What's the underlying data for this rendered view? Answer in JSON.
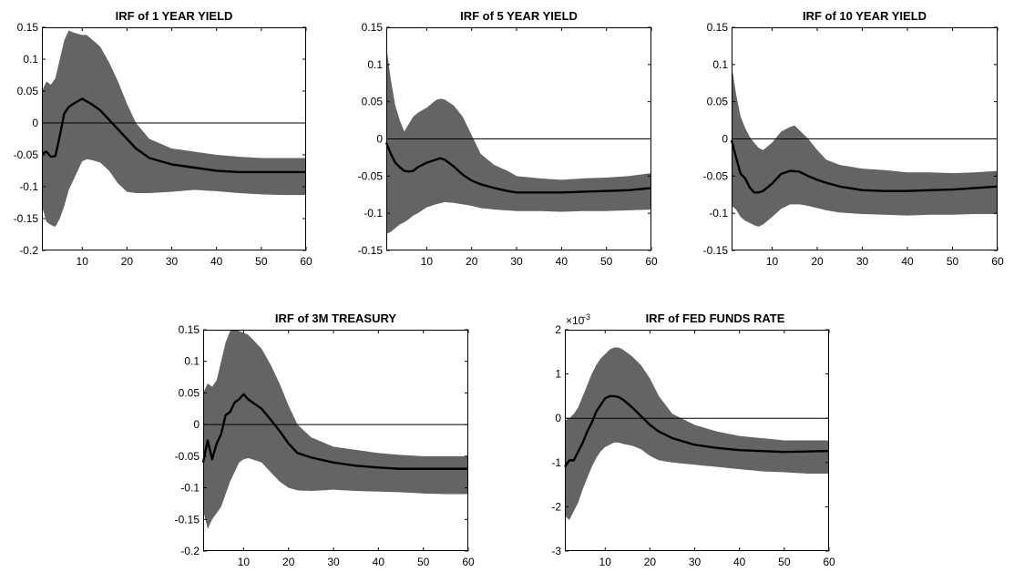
{
  "figure": {
    "background": "#ffffff"
  },
  "style": {
    "band_color": "#646464",
    "line_color": "#000000",
    "zero_line_color": "#000000"
  },
  "chart_data": [
    {
      "type": "area",
      "title": "IRF of 1 YEAR YIELD",
      "exponent_label": "",
      "xlim": [
        1,
        60
      ],
      "ylim": [
        -0.2,
        0.15
      ],
      "xticks": [
        10,
        20,
        30,
        40,
        50,
        60
      ],
      "xtick_labels": [
        "10",
        "20",
        "30",
        "40",
        "50",
        "60"
      ],
      "yticks": [
        -0.2,
        -0.15,
        -0.1,
        -0.05,
        0,
        0.05,
        0.1,
        0.15
      ],
      "ytick_labels": [
        "-0.2",
        "-0.15",
        "-0.1",
        "-0.05",
        "0",
        "0.05",
        "0.1",
        "0.15"
      ],
      "zero_line": 0,
      "series": [
        {
          "role": "irf",
          "x": [
            1,
            2,
            3,
            4,
            5,
            6,
            7,
            8,
            10,
            12,
            14,
            16,
            18,
            20,
            22,
            25,
            30,
            35,
            40,
            45,
            50,
            55,
            60
          ],
          "y": [
            -0.048,
            -0.045,
            -0.053,
            -0.052,
            -0.02,
            0.015,
            0.025,
            0.03,
            0.038,
            0.03,
            0.02,
            0.005,
            -0.01,
            -0.025,
            -0.04,
            -0.055,
            -0.065,
            -0.07,
            -0.075,
            -0.077,
            -0.077,
            -0.077,
            -0.077
          ]
        },
        {
          "role": "upper",
          "x": [
            1,
            2,
            3,
            4,
            5,
            6,
            7,
            8,
            9,
            10,
            11,
            12,
            14,
            16,
            18,
            20,
            22,
            25,
            30,
            35,
            40,
            45,
            50,
            55,
            60
          ],
          "y": [
            0.05,
            0.065,
            0.06,
            0.07,
            0.1,
            0.13,
            0.145,
            0.142,
            0.14,
            0.138,
            0.138,
            0.132,
            0.12,
            0.095,
            0.065,
            0.03,
            0.0,
            -0.025,
            -0.04,
            -0.045,
            -0.05,
            -0.053,
            -0.055,
            -0.055,
            -0.055
          ]
        },
        {
          "role": "lower",
          "x": [
            1,
            2,
            3,
            4,
            5,
            6,
            7,
            8,
            9,
            10,
            11,
            12,
            14,
            16,
            18,
            20,
            22,
            25,
            30,
            35,
            40,
            45,
            50,
            55,
            60
          ],
          "y": [
            -0.13,
            -0.155,
            -0.16,
            -0.163,
            -0.15,
            -0.13,
            -0.105,
            -0.09,
            -0.075,
            -0.06,
            -0.057,
            -0.058,
            -0.062,
            -0.075,
            -0.095,
            -0.108,
            -0.11,
            -0.11,
            -0.108,
            -0.105,
            -0.107,
            -0.11,
            -0.112,
            -0.113,
            -0.113
          ]
        }
      ]
    },
    {
      "type": "area",
      "title": "IRF of 5 YEAR YIELD",
      "exponent_label": "",
      "xlim": [
        1,
        60
      ],
      "ylim": [
        -0.15,
        0.15
      ],
      "xticks": [
        10,
        20,
        30,
        40,
        50,
        60
      ],
      "xtick_labels": [
        "10",
        "20",
        "30",
        "40",
        "50",
        "60"
      ],
      "yticks": [
        -0.15,
        -0.1,
        -0.05,
        0,
        0.05,
        0.1,
        0.15
      ],
      "ytick_labels": [
        "-0.15",
        "-0.1",
        "-0.05",
        "0",
        "0.05",
        "0.1",
        "0.15"
      ],
      "zero_line": 0,
      "series": [
        {
          "role": "irf",
          "x": [
            1,
            2,
            3,
            4,
            5,
            6,
            7,
            8,
            10,
            12,
            13,
            14,
            16,
            18,
            20,
            22,
            25,
            28,
            30,
            35,
            40,
            45,
            50,
            55,
            60
          ],
          "y": [
            -0.005,
            -0.02,
            -0.032,
            -0.038,
            -0.043,
            -0.044,
            -0.043,
            -0.038,
            -0.032,
            -0.028,
            -0.026,
            -0.028,
            -0.037,
            -0.048,
            -0.056,
            -0.061,
            -0.066,
            -0.07,
            -0.072,
            -0.072,
            -0.072,
            -0.071,
            -0.07,
            -0.069,
            -0.066
          ]
        },
        {
          "role": "upper",
          "x": [
            1,
            2,
            3,
            4,
            5,
            6,
            7,
            8,
            10,
            12,
            13,
            14,
            16,
            18,
            20,
            22,
            25,
            28,
            30,
            35,
            40,
            45,
            50,
            55,
            60
          ],
          "y": [
            0.125,
            0.08,
            0.045,
            0.025,
            0.01,
            0.02,
            0.03,
            0.035,
            0.042,
            0.052,
            0.054,
            0.053,
            0.045,
            0.03,
            0.005,
            -0.02,
            -0.035,
            -0.043,
            -0.05,
            -0.053,
            -0.055,
            -0.053,
            -0.052,
            -0.05,
            -0.046
          ]
        },
        {
          "role": "lower",
          "x": [
            1,
            2,
            3,
            4,
            5,
            6,
            7,
            8,
            10,
            12,
            14,
            16,
            18,
            20,
            22,
            25,
            30,
            35,
            40,
            45,
            50,
            55,
            60
          ],
          "y": [
            -0.128,
            -0.125,
            -0.12,
            -0.115,
            -0.112,
            -0.108,
            -0.103,
            -0.1,
            -0.092,
            -0.088,
            -0.085,
            -0.086,
            -0.088,
            -0.09,
            -0.093,
            -0.095,
            -0.097,
            -0.097,
            -0.098,
            -0.097,
            -0.097,
            -0.096,
            -0.095
          ]
        }
      ]
    },
    {
      "type": "area",
      "title": "IRF of 10 YEAR YIELD",
      "exponent_label": "",
      "xlim": [
        1,
        60
      ],
      "ylim": [
        -0.15,
        0.15
      ],
      "xticks": [
        10,
        20,
        30,
        40,
        50,
        60
      ],
      "xtick_labels": [
        "10",
        "20",
        "30",
        "40",
        "50",
        "60"
      ],
      "yticks": [
        -0.15,
        -0.1,
        -0.05,
        0,
        0.05,
        0.1,
        0.15
      ],
      "ytick_labels": [
        "-0.15",
        "-0.1",
        "-0.05",
        "0",
        "0.05",
        "0.1",
        "0.15"
      ],
      "zero_line": 0,
      "series": [
        {
          "role": "irf",
          "x": [
            1,
            2,
            3,
            4,
            5,
            6,
            7,
            8,
            10,
            12,
            14,
            16,
            18,
            20,
            22,
            25,
            30,
            35,
            40,
            45,
            50,
            55,
            60
          ],
          "y": [
            -0.002,
            -0.025,
            -0.047,
            -0.053,
            -0.065,
            -0.072,
            -0.072,
            -0.07,
            -0.06,
            -0.047,
            -0.043,
            -0.044,
            -0.05,
            -0.055,
            -0.059,
            -0.064,
            -0.069,
            -0.07,
            -0.07,
            -0.069,
            -0.068,
            -0.066,
            -0.064
          ]
        },
        {
          "role": "upper",
          "x": [
            1,
            2,
            3,
            4,
            5,
            6,
            7,
            8,
            10,
            12,
            14,
            15,
            16,
            18,
            20,
            22,
            25,
            30,
            35,
            40,
            45,
            50,
            55,
            60
          ],
          "y": [
            0.1,
            0.06,
            0.03,
            0.015,
            0.003,
            -0.005,
            -0.012,
            -0.015,
            -0.005,
            0.01,
            0.016,
            0.018,
            0.012,
            0.0,
            -0.015,
            -0.028,
            -0.035,
            -0.04,
            -0.042,
            -0.045,
            -0.045,
            -0.046,
            -0.045,
            -0.043
          ]
        },
        {
          "role": "lower",
          "x": [
            1,
            2,
            3,
            4,
            5,
            6,
            7,
            8,
            10,
            12,
            14,
            16,
            18,
            20,
            22,
            25,
            30,
            35,
            40,
            45,
            50,
            55,
            60
          ],
          "y": [
            -0.09,
            -0.095,
            -0.105,
            -0.11,
            -0.113,
            -0.116,
            -0.118,
            -0.115,
            -0.105,
            -0.094,
            -0.088,
            -0.088,
            -0.09,
            -0.093,
            -0.096,
            -0.099,
            -0.101,
            -0.102,
            -0.103,
            -0.102,
            -0.102,
            -0.101,
            -0.101
          ]
        }
      ]
    },
    {
      "type": "area",
      "title": "IRF of 3M TREASURY",
      "exponent_label": "",
      "xlim": [
        1,
        60
      ],
      "ylim": [
        -0.2,
        0.15
      ],
      "xticks": [
        10,
        20,
        30,
        40,
        50,
        60
      ],
      "xtick_labels": [
        "10",
        "20",
        "30",
        "40",
        "50",
        "60"
      ],
      "yticks": [
        -0.2,
        -0.15,
        -0.1,
        -0.05,
        0,
        0.05,
        0.1,
        0.15
      ],
      "ytick_labels": [
        "-0.2",
        "-0.15",
        "-0.1",
        "-0.05",
        "0",
        "0.05",
        "0.1",
        "0.15"
      ],
      "zero_line": 0,
      "series": [
        {
          "role": "irf",
          "x": [
            1,
            2,
            3,
            4,
            5,
            6,
            7,
            8,
            9,
            10,
            11,
            12,
            13,
            14,
            16,
            18,
            20,
            22,
            25,
            30,
            35,
            40,
            45,
            50,
            55,
            60
          ],
          "y": [
            -0.06,
            -0.025,
            -0.055,
            -0.03,
            -0.015,
            0.015,
            0.02,
            0.035,
            0.04,
            0.048,
            0.04,
            0.035,
            0.03,
            0.025,
            0.008,
            -0.01,
            -0.03,
            -0.045,
            -0.052,
            -0.06,
            -0.065,
            -0.068,
            -0.07,
            -0.07,
            -0.07,
            -0.07
          ]
        },
        {
          "role": "upper",
          "x": [
            1,
            2,
            3,
            4,
            5,
            6,
            7,
            8,
            9,
            10,
            11,
            12,
            14,
            16,
            18,
            20,
            22,
            25,
            30,
            35,
            40,
            45,
            50,
            55,
            60
          ],
          "y": [
            0.05,
            0.065,
            0.06,
            0.07,
            0.1,
            0.13,
            0.148,
            0.15,
            0.148,
            0.145,
            0.142,
            0.135,
            0.12,
            0.095,
            0.065,
            0.03,
            0.0,
            -0.02,
            -0.035,
            -0.04,
            -0.045,
            -0.048,
            -0.05,
            -0.05,
            -0.05
          ]
        },
        {
          "role": "lower",
          "x": [
            1,
            2,
            3,
            4,
            5,
            6,
            7,
            8,
            9,
            10,
            11,
            12,
            14,
            16,
            18,
            20,
            22,
            25,
            30,
            35,
            40,
            45,
            50,
            55,
            60
          ],
          "y": [
            -0.135,
            -0.165,
            -0.15,
            -0.14,
            -0.13,
            -0.11,
            -0.09,
            -0.075,
            -0.06,
            -0.055,
            -0.053,
            -0.055,
            -0.06,
            -0.075,
            -0.09,
            -0.1,
            -0.104,
            -0.105,
            -0.103,
            -0.105,
            -0.106,
            -0.107,
            -0.109,
            -0.11,
            -0.11
          ]
        }
      ]
    },
    {
      "type": "area",
      "title": "IRF of FED FUNDS RATE",
      "exponent_label": "×10",
      "exponent_power": "-3",
      "xlim": [
        1,
        60
      ],
      "ylim": [
        -3,
        2
      ],
      "xticks": [
        10,
        20,
        30,
        40,
        50,
        60
      ],
      "xtick_labels": [
        "10",
        "20",
        "30",
        "40",
        "50",
        "60"
      ],
      "yticks": [
        -3,
        -2,
        -1,
        0,
        1,
        2
      ],
      "ytick_labels": [
        "-3",
        "-2",
        "-1",
        "0",
        "1",
        "2"
      ],
      "zero_line": 0,
      "series": [
        {
          "role": "irf",
          "x": [
            1,
            2,
            3,
            4,
            5,
            6,
            7,
            8,
            9,
            10,
            11,
            12,
            13,
            14,
            16,
            18,
            20,
            22,
            25,
            30,
            35,
            40,
            45,
            50,
            55,
            60
          ],
          "y": [
            -1.1,
            -0.95,
            -0.95,
            -0.75,
            -0.55,
            -0.3,
            -0.1,
            0.15,
            0.3,
            0.45,
            0.5,
            0.5,
            0.48,
            0.42,
            0.25,
            0.05,
            -0.15,
            -0.3,
            -0.45,
            -0.6,
            -0.67,
            -0.72,
            -0.74,
            -0.76,
            -0.75,
            -0.74
          ]
        },
        {
          "role": "upper",
          "x": [
            1,
            2,
            3,
            4,
            5,
            6,
            7,
            8,
            9,
            10,
            11,
            12,
            13,
            14,
            16,
            18,
            20,
            22,
            25,
            30,
            35,
            40,
            45,
            50,
            55,
            60
          ],
          "y": [
            -0.05,
            0.0,
            0.1,
            0.25,
            0.5,
            0.75,
            1.0,
            1.2,
            1.35,
            1.45,
            1.55,
            1.6,
            1.6,
            1.55,
            1.4,
            1.2,
            0.9,
            0.5,
            0.1,
            -0.15,
            -0.3,
            -0.4,
            -0.45,
            -0.5,
            -0.5,
            -0.5
          ]
        },
        {
          "role": "lower",
          "x": [
            1,
            2,
            3,
            4,
            5,
            6,
            7,
            8,
            9,
            10,
            11,
            12,
            13,
            14,
            16,
            18,
            20,
            22,
            25,
            30,
            35,
            40,
            45,
            50,
            55,
            60
          ],
          "y": [
            -2.2,
            -2.3,
            -2.1,
            -1.9,
            -1.6,
            -1.35,
            -1.1,
            -0.9,
            -0.75,
            -0.65,
            -0.6,
            -0.55,
            -0.55,
            -0.58,
            -0.62,
            -0.7,
            -0.85,
            -0.95,
            -1.0,
            -1.05,
            -1.1,
            -1.15,
            -1.2,
            -1.22,
            -1.25,
            -1.25
          ]
        }
      ]
    }
  ]
}
